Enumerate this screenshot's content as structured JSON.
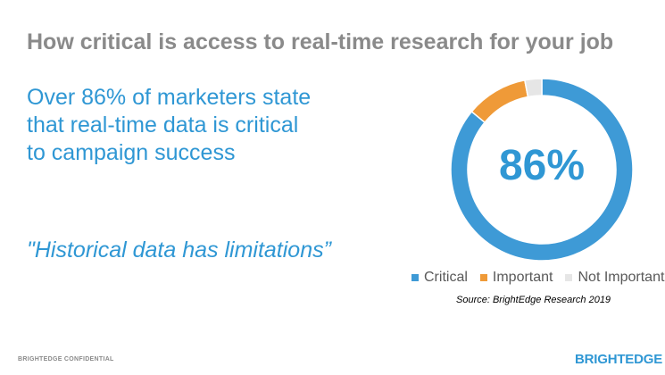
{
  "slide": {
    "title": "How critical is access to real-time research for your job",
    "headline": "Over 86% of marketers state that real-time data is critical to campaign success",
    "quote": "\"Historical data has limitations”",
    "source": "Source: BrightEdge Research 2019",
    "footer_left": "BRIGHTEDGE CONFIDENTIAL",
    "logo_text": "BRIGHTEDGE"
  },
  "chart_data": {
    "type": "pie",
    "subtype": "donut",
    "center_label": "86%",
    "categories": [
      "Critical",
      "Important",
      "Not Important"
    ],
    "values": [
      86,
      11,
      3
    ],
    "colors": [
      "#3e9ad6",
      "#ef9a38",
      "#e6e6e6"
    ],
    "legend": "bottom"
  }
}
